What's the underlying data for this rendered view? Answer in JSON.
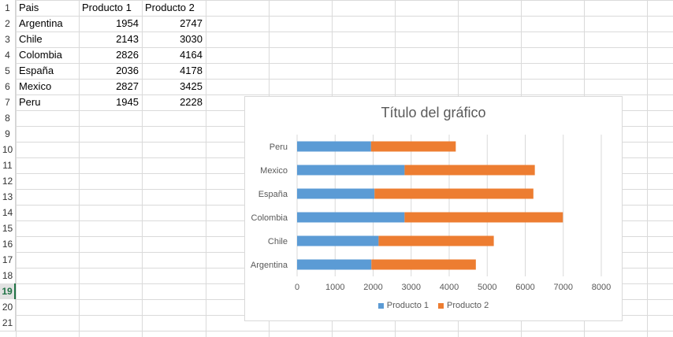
{
  "sheet": {
    "row_numbers": [
      "1",
      "2",
      "3",
      "4",
      "5",
      "6",
      "7",
      "8",
      "9",
      "10",
      "11",
      "12",
      "13",
      "14",
      "15",
      "16",
      "17",
      "18",
      "19",
      "20",
      "21"
    ],
    "active_row": "19",
    "header": [
      "Pais",
      "Producto 1",
      "Producto 2"
    ],
    "rows": [
      [
        "Argentina",
        "1954",
        "2747"
      ],
      [
        "Chile",
        "2143",
        "3030"
      ],
      [
        "Colombia",
        "2826",
        "4164"
      ],
      [
        "España",
        "2036",
        "4178"
      ],
      [
        "Mexico",
        "2827",
        "3425"
      ],
      [
        "Peru",
        "1945",
        "2228"
      ]
    ]
  },
  "colors": {
    "producto1": "#5b9bd5",
    "producto2": "#ed7d31",
    "gridline": "#d9d9d9",
    "active_row": "#217346"
  },
  "chart_data": {
    "type": "bar",
    "orientation": "horizontal",
    "stacked": true,
    "title": "Título del gráfico",
    "categories": [
      "Argentina",
      "Chile",
      "Colombia",
      "España",
      "Mexico",
      "Peru"
    ],
    "series": [
      {
        "name": "Producto 1",
        "values": [
          1954,
          2143,
          2826,
          2036,
          2827,
          1945
        ]
      },
      {
        "name": "Producto 2",
        "values": [
          2747,
          3030,
          4164,
          4178,
          3425,
          2228
        ]
      }
    ],
    "xlim": [
      0,
      8000
    ],
    "x_ticks": [
      "0",
      "1000",
      "2000",
      "3000",
      "4000",
      "5000",
      "6000",
      "7000",
      "8000"
    ],
    "grid": true,
    "legend_position": "bottom"
  }
}
